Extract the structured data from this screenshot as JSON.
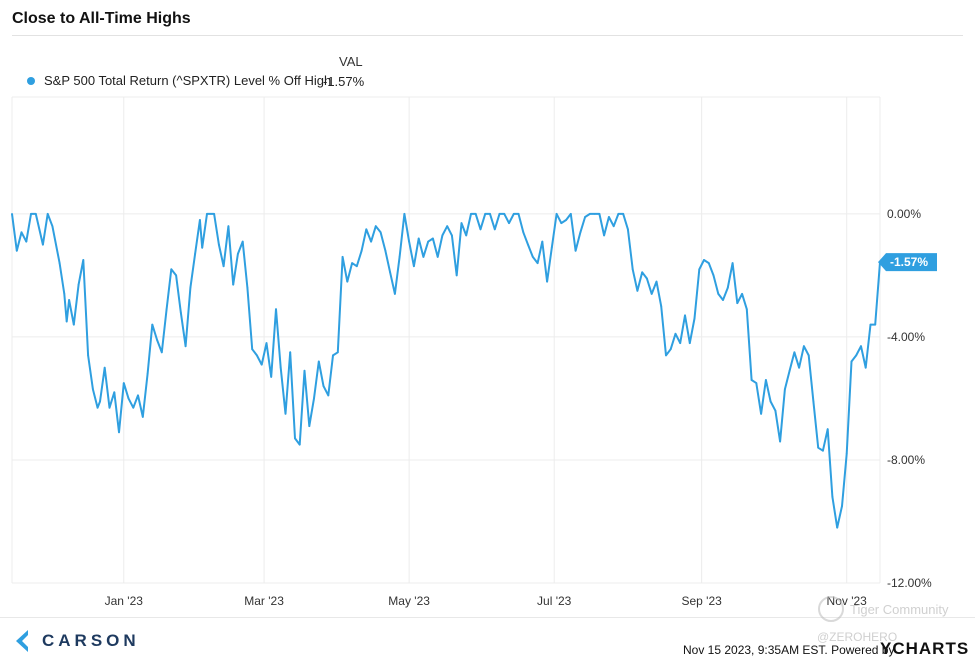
{
  "header": {
    "title": "Close to All-Time Highs"
  },
  "legend": {
    "column_label": "VAL",
    "series_label": "S&P 500 Total Return (^SPXTR) Level % Off High",
    "series_value": "-1.57%"
  },
  "colors": {
    "series": "#2f9fe0",
    "grid": "#ececec",
    "axis_text": "#333333"
  },
  "chart_data": {
    "type": "line",
    "title": "Close to All-Time Highs",
    "xlabel": "",
    "ylabel": "",
    "x_tick_labels": [
      "Jan '23",
      "Mar '23",
      "May '23",
      "Jul '23",
      "Sep '23",
      "Nov '23"
    ],
    "x_tick_dates": [
      "2023-01-01",
      "2023-03-01",
      "2023-05-01",
      "2023-07-01",
      "2023-09-01",
      "2023-11-01"
    ],
    "x_range": [
      "2022-11-15",
      "2023-11-15"
    ],
    "y_tick_labels": [
      "0.00%",
      "-4.00%",
      "-8.00%",
      "-12.00%"
    ],
    "y_ticks": [
      0,
      -4,
      -8,
      -12
    ],
    "ylim": [
      -12,
      3.8
    ],
    "grid": true,
    "legend_position": "top-left",
    "last_value_label": "-1.57%",
    "series": [
      {
        "name": "S&P 500 Total Return (^SPXTR) Level % Off High",
        "points": [
          [
            "2022-11-15",
            0.0
          ],
          [
            "2022-11-17",
            -1.2
          ],
          [
            "2022-11-19",
            -0.6
          ],
          [
            "2022-11-21",
            -0.9
          ],
          [
            "2022-11-23",
            0.0
          ],
          [
            "2022-11-25",
            0.0
          ],
          [
            "2022-11-28",
            -1.0
          ],
          [
            "2022-11-30",
            0.0
          ],
          [
            "2022-12-02",
            -0.4
          ],
          [
            "2022-12-05",
            -1.6
          ],
          [
            "2022-12-07",
            -2.6
          ],
          [
            "2022-12-08",
            -3.5
          ],
          [
            "2022-12-09",
            -2.8
          ],
          [
            "2022-12-11",
            -3.6
          ],
          [
            "2022-12-13",
            -2.3
          ],
          [
            "2022-12-15",
            -1.5
          ],
          [
            "2022-12-17",
            -4.6
          ],
          [
            "2022-12-19",
            -5.7
          ],
          [
            "2022-12-21",
            -6.3
          ],
          [
            "2022-12-22",
            -6.1
          ],
          [
            "2022-12-24",
            -5.0
          ],
          [
            "2022-12-26",
            -6.3
          ],
          [
            "2022-12-28",
            -5.8
          ],
          [
            "2022-12-30",
            -7.1
          ],
          [
            "2023-01-01",
            -5.5
          ],
          [
            "2023-01-03",
            -6.0
          ],
          [
            "2023-01-05",
            -6.3
          ],
          [
            "2023-01-07",
            -5.9
          ],
          [
            "2023-01-09",
            -6.6
          ],
          [
            "2023-01-11",
            -5.2
          ],
          [
            "2023-01-13",
            -3.6
          ],
          [
            "2023-01-15",
            -4.1
          ],
          [
            "2023-01-17",
            -4.5
          ],
          [
            "2023-01-19",
            -3.1
          ],
          [
            "2023-01-21",
            -1.8
          ],
          [
            "2023-01-23",
            -2.0
          ],
          [
            "2023-01-25",
            -3.2
          ],
          [
            "2023-01-27",
            -4.3
          ],
          [
            "2023-01-29",
            -2.4
          ],
          [
            "2023-01-31",
            -1.3
          ],
          [
            "2023-02-02",
            -0.2
          ],
          [
            "2023-02-03",
            -1.1
          ],
          [
            "2023-02-05",
            0.0
          ],
          [
            "2023-02-08",
            0.0
          ],
          [
            "2023-02-10",
            -1.0
          ],
          [
            "2023-02-12",
            -1.7
          ],
          [
            "2023-02-14",
            -0.4
          ],
          [
            "2023-02-16",
            -2.3
          ],
          [
            "2023-02-18",
            -1.3
          ],
          [
            "2023-02-20",
            -0.9
          ],
          [
            "2023-02-22",
            -2.4
          ],
          [
            "2023-02-24",
            -4.4
          ],
          [
            "2023-02-26",
            -4.6
          ],
          [
            "2023-02-28",
            -4.9
          ],
          [
            "2023-03-02",
            -4.2
          ],
          [
            "2023-03-04",
            -5.3
          ],
          [
            "2023-03-06",
            -3.1
          ],
          [
            "2023-03-08",
            -5.0
          ],
          [
            "2023-03-10",
            -6.5
          ],
          [
            "2023-03-12",
            -4.5
          ],
          [
            "2023-03-14",
            -7.3
          ],
          [
            "2023-03-16",
            -7.5
          ],
          [
            "2023-03-18",
            -5.1
          ],
          [
            "2023-03-20",
            -6.9
          ],
          [
            "2023-03-22",
            -6.0
          ],
          [
            "2023-03-24",
            -4.8
          ],
          [
            "2023-03-26",
            -5.6
          ],
          [
            "2023-03-28",
            -5.9
          ],
          [
            "2023-03-30",
            -4.6
          ],
          [
            "2023-04-01",
            -4.5
          ],
          [
            "2023-04-03",
            -1.4
          ],
          [
            "2023-04-05",
            -2.2
          ],
          [
            "2023-04-07",
            -1.6
          ],
          [
            "2023-04-09",
            -1.7
          ],
          [
            "2023-04-11",
            -1.2
          ],
          [
            "2023-04-13",
            -0.5
          ],
          [
            "2023-04-15",
            -0.9
          ],
          [
            "2023-04-17",
            -0.4
          ],
          [
            "2023-04-19",
            -0.6
          ],
          [
            "2023-04-21",
            -1.2
          ],
          [
            "2023-04-23",
            -1.9
          ],
          [
            "2023-04-25",
            -2.6
          ],
          [
            "2023-04-27",
            -1.4
          ],
          [
            "2023-04-29",
            0.0
          ],
          [
            "2023-05-01",
            -0.9
          ],
          [
            "2023-05-03",
            -1.7
          ],
          [
            "2023-05-05",
            -0.8
          ],
          [
            "2023-05-07",
            -1.4
          ],
          [
            "2023-05-09",
            -0.9
          ],
          [
            "2023-05-11",
            -0.8
          ],
          [
            "2023-05-13",
            -1.4
          ],
          [
            "2023-05-15",
            -0.7
          ],
          [
            "2023-05-17",
            -0.4
          ],
          [
            "2023-05-19",
            -0.7
          ],
          [
            "2023-05-21",
            -2.0
          ],
          [
            "2023-05-23",
            -0.3
          ],
          [
            "2023-05-25",
            -0.7
          ],
          [
            "2023-05-27",
            0.0
          ],
          [
            "2023-05-29",
            0.0
          ],
          [
            "2023-05-31",
            -0.5
          ],
          [
            "2023-06-02",
            0.0
          ],
          [
            "2023-06-04",
            0.0
          ],
          [
            "2023-06-06",
            -0.5
          ],
          [
            "2023-06-08",
            0.0
          ],
          [
            "2023-06-10",
            0.0
          ],
          [
            "2023-06-12",
            -0.3
          ],
          [
            "2023-06-14",
            0.0
          ],
          [
            "2023-06-16",
            0.0
          ],
          [
            "2023-06-18",
            -0.6
          ],
          [
            "2023-06-20",
            -1.0
          ],
          [
            "2023-06-22",
            -1.4
          ],
          [
            "2023-06-24",
            -1.6
          ],
          [
            "2023-06-26",
            -0.9
          ],
          [
            "2023-06-28",
            -2.2
          ],
          [
            "2023-06-30",
            -1.1
          ],
          [
            "2023-07-02",
            0.0
          ],
          [
            "2023-07-04",
            -0.3
          ],
          [
            "2023-07-06",
            -0.2
          ],
          [
            "2023-07-08",
            0.0
          ],
          [
            "2023-07-10",
            -1.2
          ],
          [
            "2023-07-12",
            -0.6
          ],
          [
            "2023-07-14",
            -0.1
          ],
          [
            "2023-07-16",
            0.0
          ],
          [
            "2023-07-18",
            0.0
          ],
          [
            "2023-07-20",
            0.0
          ],
          [
            "2023-07-22",
            -0.7
          ],
          [
            "2023-07-24",
            -0.1
          ],
          [
            "2023-07-26",
            -0.4
          ],
          [
            "2023-07-28",
            0.0
          ],
          [
            "2023-07-30",
            0.0
          ],
          [
            "2023-08-01",
            -0.5
          ],
          [
            "2023-08-03",
            -1.8
          ],
          [
            "2023-08-05",
            -2.5
          ],
          [
            "2023-08-07",
            -1.9
          ],
          [
            "2023-08-09",
            -2.1
          ],
          [
            "2023-08-11",
            -2.6
          ],
          [
            "2023-08-13",
            -2.2
          ],
          [
            "2023-08-15",
            -3.0
          ],
          [
            "2023-08-17",
            -4.6
          ],
          [
            "2023-08-19",
            -4.4
          ],
          [
            "2023-08-21",
            -3.9
          ],
          [
            "2023-08-23",
            -4.2
          ],
          [
            "2023-08-25",
            -3.3
          ],
          [
            "2023-08-27",
            -4.2
          ],
          [
            "2023-08-29",
            -3.4
          ],
          [
            "2023-08-31",
            -1.8
          ],
          [
            "2023-09-02",
            -1.5
          ],
          [
            "2023-09-04",
            -1.6
          ],
          [
            "2023-09-06",
            -2.0
          ],
          [
            "2023-09-08",
            -2.6
          ],
          [
            "2023-09-10",
            -2.8
          ],
          [
            "2023-09-12",
            -2.4
          ],
          [
            "2023-09-14",
            -1.6
          ],
          [
            "2023-09-16",
            -2.9
          ],
          [
            "2023-09-18",
            -2.6
          ],
          [
            "2023-09-20",
            -3.1
          ],
          [
            "2023-09-22",
            -5.4
          ],
          [
            "2023-09-24",
            -5.5
          ],
          [
            "2023-09-26",
            -6.5
          ],
          [
            "2023-09-28",
            -5.4
          ],
          [
            "2023-09-30",
            -6.1
          ],
          [
            "2023-10-02",
            -6.4
          ],
          [
            "2023-10-04",
            -7.4
          ],
          [
            "2023-10-06",
            -5.7
          ],
          [
            "2023-10-08",
            -5.1
          ],
          [
            "2023-10-10",
            -4.5
          ],
          [
            "2023-10-12",
            -5.0
          ],
          [
            "2023-10-14",
            -4.3
          ],
          [
            "2023-10-16",
            -4.6
          ],
          [
            "2023-10-18",
            -6.1
          ],
          [
            "2023-10-20",
            -7.6
          ],
          [
            "2023-10-22",
            -7.7
          ],
          [
            "2023-10-24",
            -7.0
          ],
          [
            "2023-10-26",
            -9.2
          ],
          [
            "2023-10-28",
            -10.2
          ],
          [
            "2023-10-30",
            -9.5
          ],
          [
            "2023-11-01",
            -7.8
          ],
          [
            "2023-11-03",
            -4.8
          ],
          [
            "2023-11-05",
            -4.6
          ],
          [
            "2023-11-07",
            -4.3
          ],
          [
            "2023-11-09",
            -5.0
          ],
          [
            "2023-11-11",
            -3.6
          ],
          [
            "2023-11-13",
            -3.6
          ],
          [
            "2023-11-15",
            -1.57
          ]
        ]
      }
    ]
  },
  "footer": {
    "brand": "CARSON",
    "timestamp": "Nov 15 2023, 9:35AM EST. Powered by",
    "provider": "YCHARTS",
    "watermark_text": "Tiger Community",
    "watermark_handle": "@ZEROHERO"
  }
}
